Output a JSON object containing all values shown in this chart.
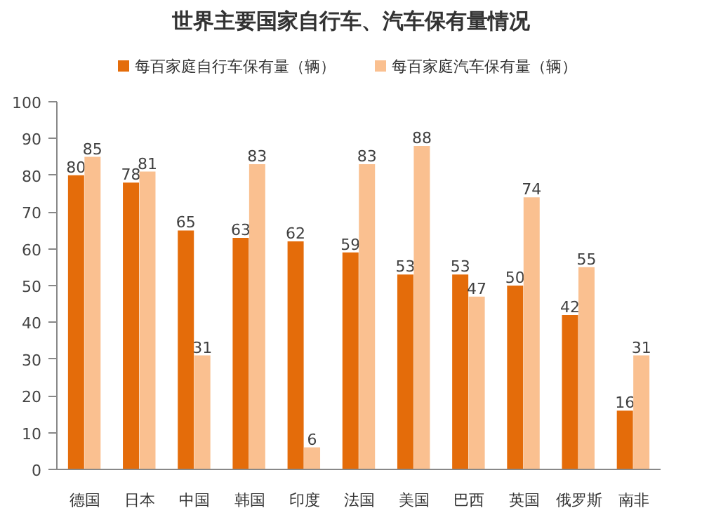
{
  "chart_data": {
    "type": "bar",
    "title": "世界主要国家自行车、汽车保有量情况",
    "categories": [
      "德国",
      "日本",
      "中国",
      "韩国",
      "印度",
      "法国",
      "美国",
      "巴西",
      "英国",
      "俄罗斯",
      "南非"
    ],
    "series": [
      {
        "name": "每百家庭自行车保有量（辆）",
        "color": "#e46c0a",
        "values": [
          80,
          78,
          65,
          63,
          62,
          59,
          53,
          53,
          50,
          42,
          16
        ]
      },
      {
        "name": "每百家庭汽车保有量（辆）",
        "color": "#fac090",
        "values": [
          85,
          81,
          31,
          83,
          6,
          83,
          88,
          47,
          74,
          55,
          31
        ]
      }
    ],
    "ylim": [
      0,
      100
    ],
    "yticks": [
      0,
      10,
      20,
      30,
      40,
      50,
      60,
      70,
      80,
      90,
      100
    ],
    "grid": false,
    "legend": "top",
    "data_labels": true
  }
}
